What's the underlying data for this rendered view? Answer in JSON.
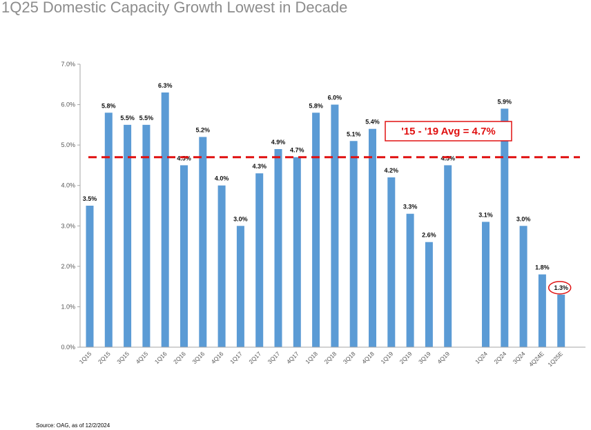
{
  "title": "1Q25 Domestic Capacity Growth Lowest in Decade",
  "source": "Source: OAG, as  of 12/2/2024",
  "colors": {
    "bar": "#5b9bd5",
    "avg_line": "#e01010",
    "axis": "#a6a6a6"
  },
  "chart_data": {
    "type": "bar",
    "title": "1Q25 Domestic Capacity Growth Lowest in Decade",
    "xlabel": "",
    "ylabel": "",
    "ylim": [
      0,
      7
    ],
    "yticks": [
      "0.0%",
      "1.0%",
      "2.0%",
      "3.0%",
      "4.0%",
      "5.0%",
      "6.0%",
      "7.0%"
    ],
    "categories": [
      "1Q15",
      "2Q15",
      "3Q15",
      "4Q15",
      "1Q16",
      "2Q16",
      "3Q16",
      "4Q16",
      "1Q17",
      "2Q17",
      "3Q17",
      "4Q17",
      "1Q18",
      "2Q18",
      "3Q18",
      "4Q18",
      "1Q19",
      "2Q19",
      "3Q19",
      "4Q19",
      "1Q24",
      "2Q24",
      "3Q24",
      "4Q24E",
      "1Q25E"
    ],
    "values": [
      3.5,
      5.8,
      5.5,
      5.5,
      6.3,
      4.5,
      5.2,
      4.0,
      3.0,
      4.3,
      4.9,
      4.7,
      5.8,
      6.0,
      5.1,
      5.4,
      4.2,
      3.3,
      2.6,
      4.5,
      3.1,
      5.9,
      3.0,
      1.8,
      1.3
    ],
    "labels": [
      "3.5%",
      "5.8%",
      "5.5%",
      "5.5%",
      "6.3%",
      "4.5%",
      "5.2%",
      "4.0%",
      "3.0%",
      "4.3%",
      "4.9%",
      "4.7%",
      "5.8%",
      "6.0%",
      "5.1%",
      "5.4%",
      "4.2%",
      "3.3%",
      "2.6%",
      "4.5%",
      "3.1%",
      "5.9%",
      "3.0%",
      "1.8%",
      "1.3%"
    ],
    "average": {
      "value": 4.7,
      "label": "'15 - '19 Avg = 4.7%"
    },
    "highlight": "1Q25E",
    "grid": false,
    "legend": "none"
  }
}
